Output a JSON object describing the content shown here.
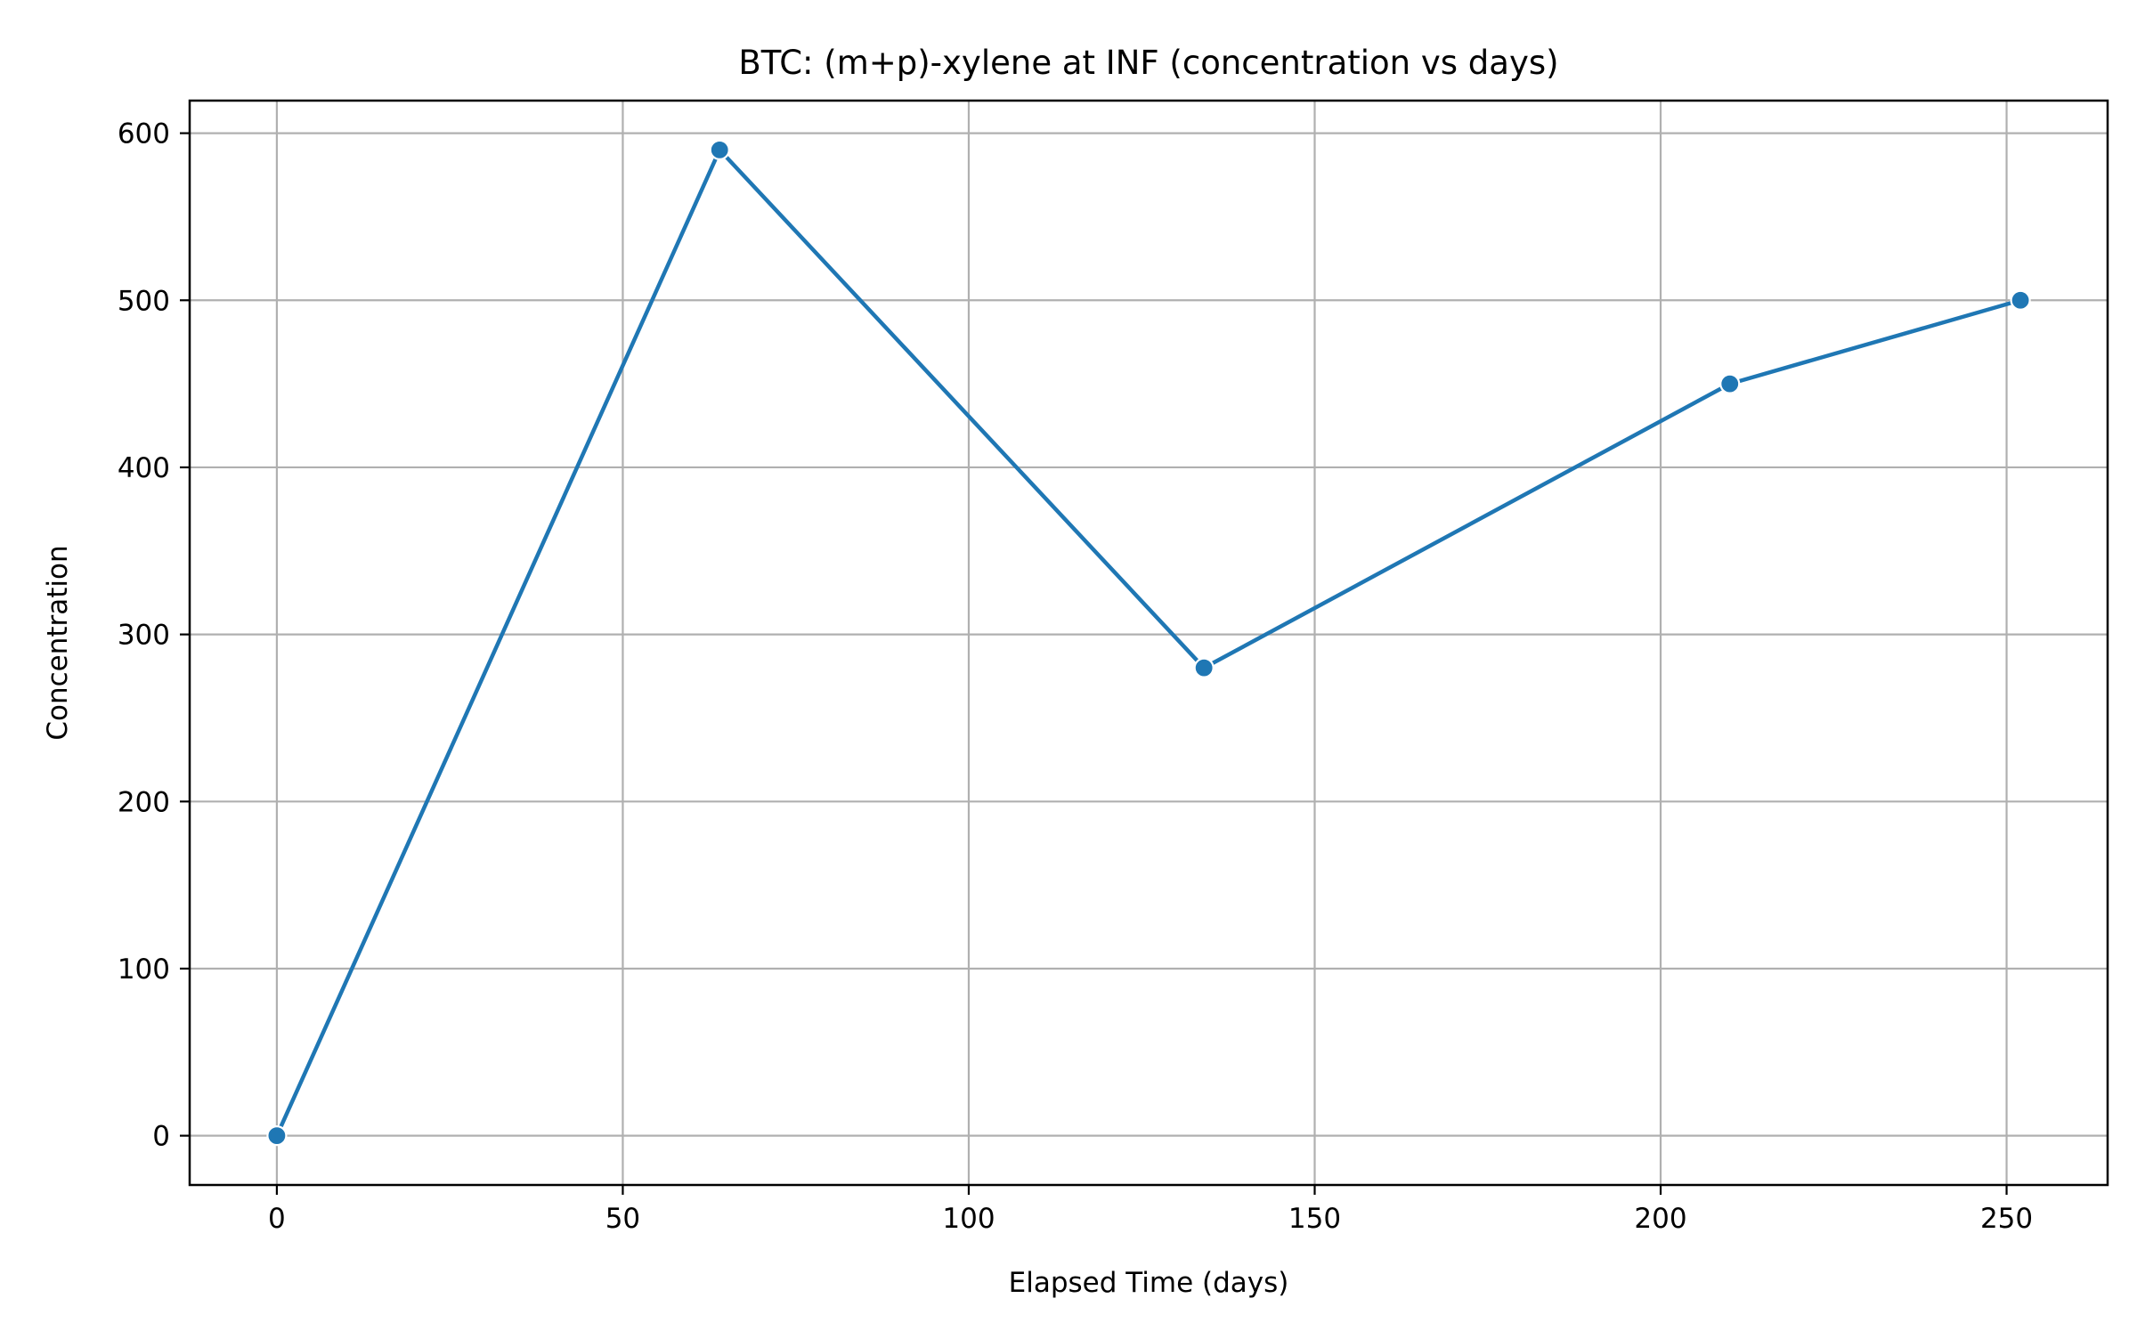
{
  "chart_data": {
    "type": "line",
    "title": "BTC: (m+p)-xylene at INF (concentration vs days)",
    "xlabel": "Elapsed Time (days)",
    "ylabel": "Concentration",
    "xlim": [
      -12.6,
      264.6
    ],
    "ylim": [
      -29.5,
      619.5
    ],
    "x_ticks": [
      0,
      50,
      100,
      150,
      200,
      250
    ],
    "y_ticks": [
      0,
      100,
      200,
      300,
      400,
      500,
      600
    ],
    "x_tick_labels": [
      "0",
      "50",
      "100",
      "150",
      "200",
      "250"
    ],
    "y_tick_labels": [
      "0",
      "100",
      "200",
      "300",
      "400",
      "500",
      "600"
    ],
    "grid": true,
    "series": [
      {
        "x": [
          0,
          64,
          134,
          210,
          252
        ],
        "y": [
          0,
          590,
          280,
          450,
          500
        ],
        "color": "#1f77b4",
        "marker": "circle"
      }
    ]
  }
}
